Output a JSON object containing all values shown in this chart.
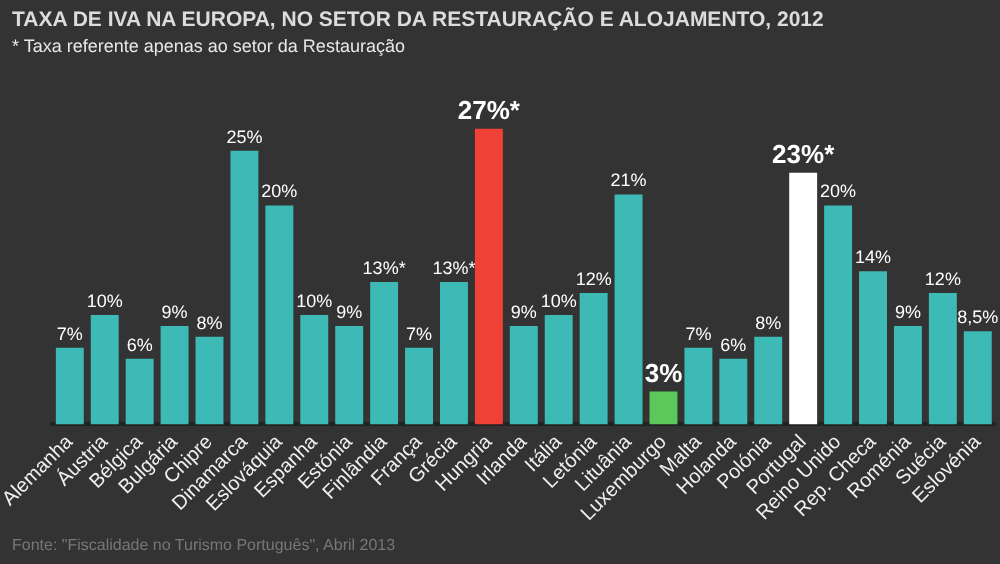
{
  "chart_data": {
    "type": "bar",
    "title": "TAXA DE IVA NA EUROPA, NO SETOR DA RESTAURAÇÃO E ALOJAMENTO, 2012",
    "subtitle": "* Taxa referente apenas ao setor da Restauração",
    "annotations": [
      "Fonte: \"Fiscalidade no Turismo Português\", Abril 2013"
    ],
    "categories": [
      "Alemanha",
      "Áustria",
      "Bélgica",
      "Bulgária",
      "Chipre",
      "Dinamarca",
      "Eslováquia",
      "Espanha",
      "Estónia",
      "Finlândia",
      "França",
      "Grécia",
      "Hungria",
      "Irlanda",
      "Itália",
      "Letónia",
      "Lituânia",
      "Luxemburgo",
      "Malta",
      "Holanda",
      "Polónia",
      "Portugal",
      "Reino Unido",
      "Rep. Checa",
      "Roménia",
      "Suécia",
      "Eslovénia"
    ],
    "values": [
      7,
      10,
      6,
      9,
      8,
      25,
      20,
      10,
      9,
      13,
      7,
      13,
      27,
      9,
      10,
      12,
      21,
      3,
      7,
      6,
      8,
      23,
      20,
      14,
      9,
      12,
      8.5
    ],
    "value_labels": [
      "7%",
      "10%",
      "6%",
      "9%",
      "8%",
      "25%",
      "20%",
      "10%",
      "9%",
      "13%*",
      "7%",
      "13%*",
      "27%*",
      "9%",
      "10%",
      "12%",
      "21%",
      "3%",
      "7%",
      "6%",
      "8%",
      "23%*",
      "20%",
      "14%",
      "9%",
      "12%",
      "8,5%"
    ],
    "color": "#3dbab5",
    "colors": [
      "#3dbab5",
      "#3dbab5",
      "#3dbab5",
      "#3dbab5",
      "#3dbab5",
      "#3dbab5",
      "#3dbab5",
      "#3dbab5",
      "#3dbab5",
      "#3dbab5",
      "#3dbab5",
      "#3dbab5",
      "#ef4136",
      "#3dbab5",
      "#3dbab5",
      "#3dbab5",
      "#3dbab5",
      "#5cc75a",
      "#3dbab5",
      "#3dbab5",
      "#3dbab5",
      "#ffffff",
      "#3dbab5",
      "#3dbab5",
      "#3dbab5",
      "#3dbab5",
      "#3dbab5"
    ],
    "grid": false,
    "legend": false
  }
}
